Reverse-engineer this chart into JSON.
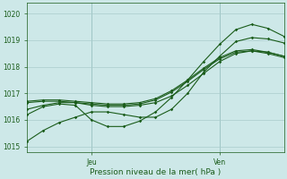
{
  "xlabel": "Pression niveau de la mer( hPa )",
  "bg_color": "#cde8e8",
  "grid_color": "#aacccc",
  "line_color": "#1a5c1a",
  "ylim": [
    1014.8,
    1020.4
  ],
  "xlim": [
    0,
    48
  ],
  "jeu_x": 12,
  "ven_x": 36,
  "yticks": [
    1015,
    1016,
    1017,
    1018,
    1019,
    1020
  ],
  "series": [
    {
      "x": [
        0,
        3,
        6,
        9,
        12,
        15,
        18,
        21,
        24,
        27,
        30,
        33,
        36,
        39,
        42,
        45,
        48
      ],
      "y": [
        1015.2,
        1015.6,
        1015.9,
        1016.1,
        1016.3,
        1016.3,
        1016.2,
        1016.1,
        1016.1,
        1016.4,
        1017.0,
        1017.8,
        1018.4,
        1018.95,
        1019.1,
        1019.05,
        1018.9
      ]
    },
    {
      "x": [
        0,
        3,
        6,
        9,
        12,
        15,
        18,
        21,
        24,
        27,
        30,
        33,
        36,
        39,
        42,
        45,
        48
      ],
      "y": [
        1016.4,
        1016.55,
        1016.65,
        1016.65,
        1016.55,
        1016.5,
        1016.5,
        1016.55,
        1016.65,
        1016.9,
        1017.3,
        1017.75,
        1018.2,
        1018.5,
        1018.6,
        1018.55,
        1018.4
      ]
    },
    {
      "x": [
        0,
        3,
        6,
        9,
        12,
        15,
        18,
        21,
        24,
        27,
        30,
        33,
        36,
        39,
        42,
        45,
        48
      ],
      "y": [
        1016.65,
        1016.7,
        1016.7,
        1016.65,
        1016.6,
        1016.55,
        1016.55,
        1016.6,
        1016.75,
        1017.05,
        1017.45,
        1017.9,
        1018.3,
        1018.55,
        1018.6,
        1018.5,
        1018.35
      ]
    },
    {
      "x": [
        0,
        3,
        6,
        9,
        12,
        15,
        18,
        21,
        24,
        27,
        30,
        33,
        36,
        39,
        42,
        45,
        48
      ],
      "y": [
        1016.7,
        1016.75,
        1016.75,
        1016.7,
        1016.65,
        1016.6,
        1016.6,
        1016.65,
        1016.8,
        1017.1,
        1017.5,
        1017.95,
        1018.35,
        1018.6,
        1018.65,
        1018.55,
        1018.4
      ]
    },
    {
      "x": [
        0,
        3,
        6,
        9,
        12,
        15,
        18,
        21,
        24,
        27,
        30,
        33,
        36,
        39,
        42,
        45,
        48
      ],
      "y": [
        1016.2,
        1016.5,
        1016.6,
        1016.55,
        1016.0,
        1015.75,
        1015.75,
        1015.95,
        1016.3,
        1016.85,
        1017.5,
        1018.2,
        1018.85,
        1019.4,
        1019.6,
        1019.45,
        1019.15
      ]
    }
  ]
}
